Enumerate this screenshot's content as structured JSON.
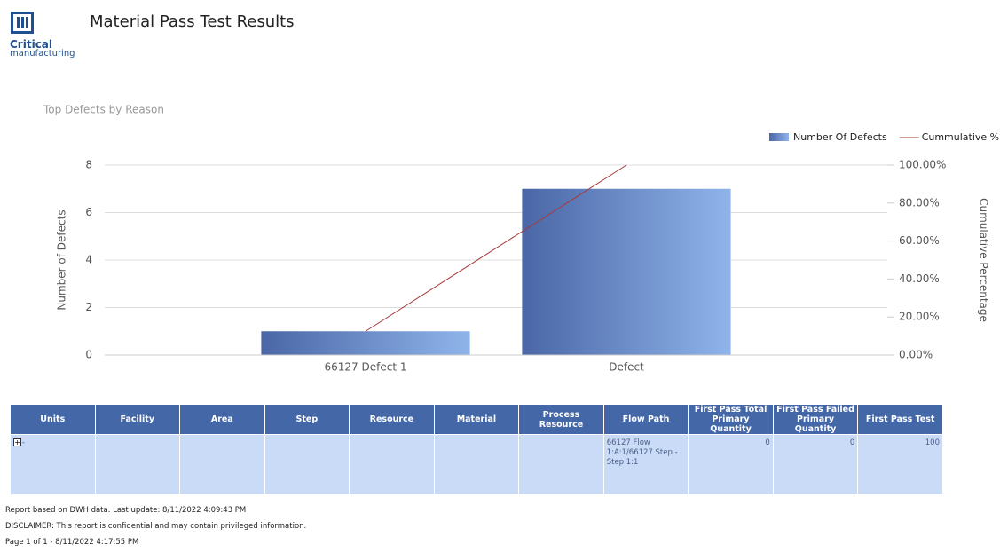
{
  "header": {
    "logo_line1": "Critical",
    "logo_line2": "manufacturing",
    "title": "Material Pass Test Results"
  },
  "chart_data": {
    "type": "bar+line",
    "title": "Top Defects by Reason",
    "categories": [
      "66127 Defect 1",
      "Defect"
    ],
    "series": [
      {
        "name": "Number Of Defects",
        "type": "bar",
        "color": "#4a66a6",
        "values": [
          1,
          7
        ]
      },
      {
        "name": "Cummulative %",
        "type": "line",
        "axis": "y2",
        "color": "#a83a3a",
        "values": [
          12.5,
          100
        ]
      }
    ],
    "ylabel": "Number of Defects",
    "y2label": "Cumulative Percentage",
    "ylim": [
      0,
      8
    ],
    "yticks": [
      0,
      2,
      4,
      6,
      8
    ],
    "y2lim": [
      0,
      100
    ],
    "y2ticks": [
      {
        "value": 0,
        "label": "0.00%"
      },
      {
        "value": 20,
        "label": "20.00%"
      },
      {
        "value": 40,
        "label": "40.00%"
      },
      {
        "value": 60,
        "label": "60.00%"
      },
      {
        "value": 80,
        "label": "80.00%"
      },
      {
        "value": 100,
        "label": "100.00%"
      }
    ],
    "grid": true,
    "legend": "top-right"
  },
  "table": {
    "columns": [
      "Units",
      "Facility",
      "Area",
      "Step",
      "Resource",
      "Material",
      "Process Resource",
      "Flow Path",
      "First Pass Total Primary Quantity",
      "First Pass Failed Primary Quantity",
      "First Pass Test"
    ],
    "rows": [
      {
        "units": "-",
        "flow_path": "66127 Flow 1:A:1/66127 Step - Step 1:1",
        "first_pass_total": 0,
        "first_pass_failed": 0,
        "first_pass_test": 100
      }
    ]
  },
  "footer": [
    "Report based on DWH data. Last update: 8/11/2022 4:09:43 PM",
    "DISCLAIMER: This report is confidential and may contain privileged information.",
    "Page 1 of 1 - 8/11/2022 4:17:55 PM"
  ]
}
